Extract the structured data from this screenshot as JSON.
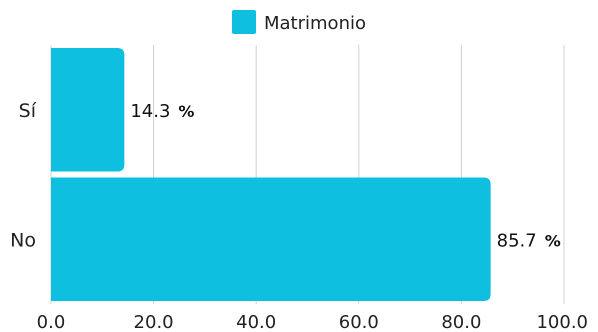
{
  "chart_data": {
    "type": "bar",
    "orientation": "horizontal",
    "categories": [
      "Sí",
      "No"
    ],
    "series": [
      {
        "name": "Matrimonio",
        "values": [
          14.3,
          85.7
        ],
        "color": "#0fbfe0"
      }
    ],
    "value_suffix": "%",
    "xlim": [
      0,
      100
    ],
    "xticks": [
      "0.0",
      "20.0",
      "40.0",
      "60.0",
      "80.0",
      "100.0"
    ],
    "grid": true,
    "legend_position": "top-center",
    "title": "",
    "xlabel": "",
    "ylabel": ""
  }
}
